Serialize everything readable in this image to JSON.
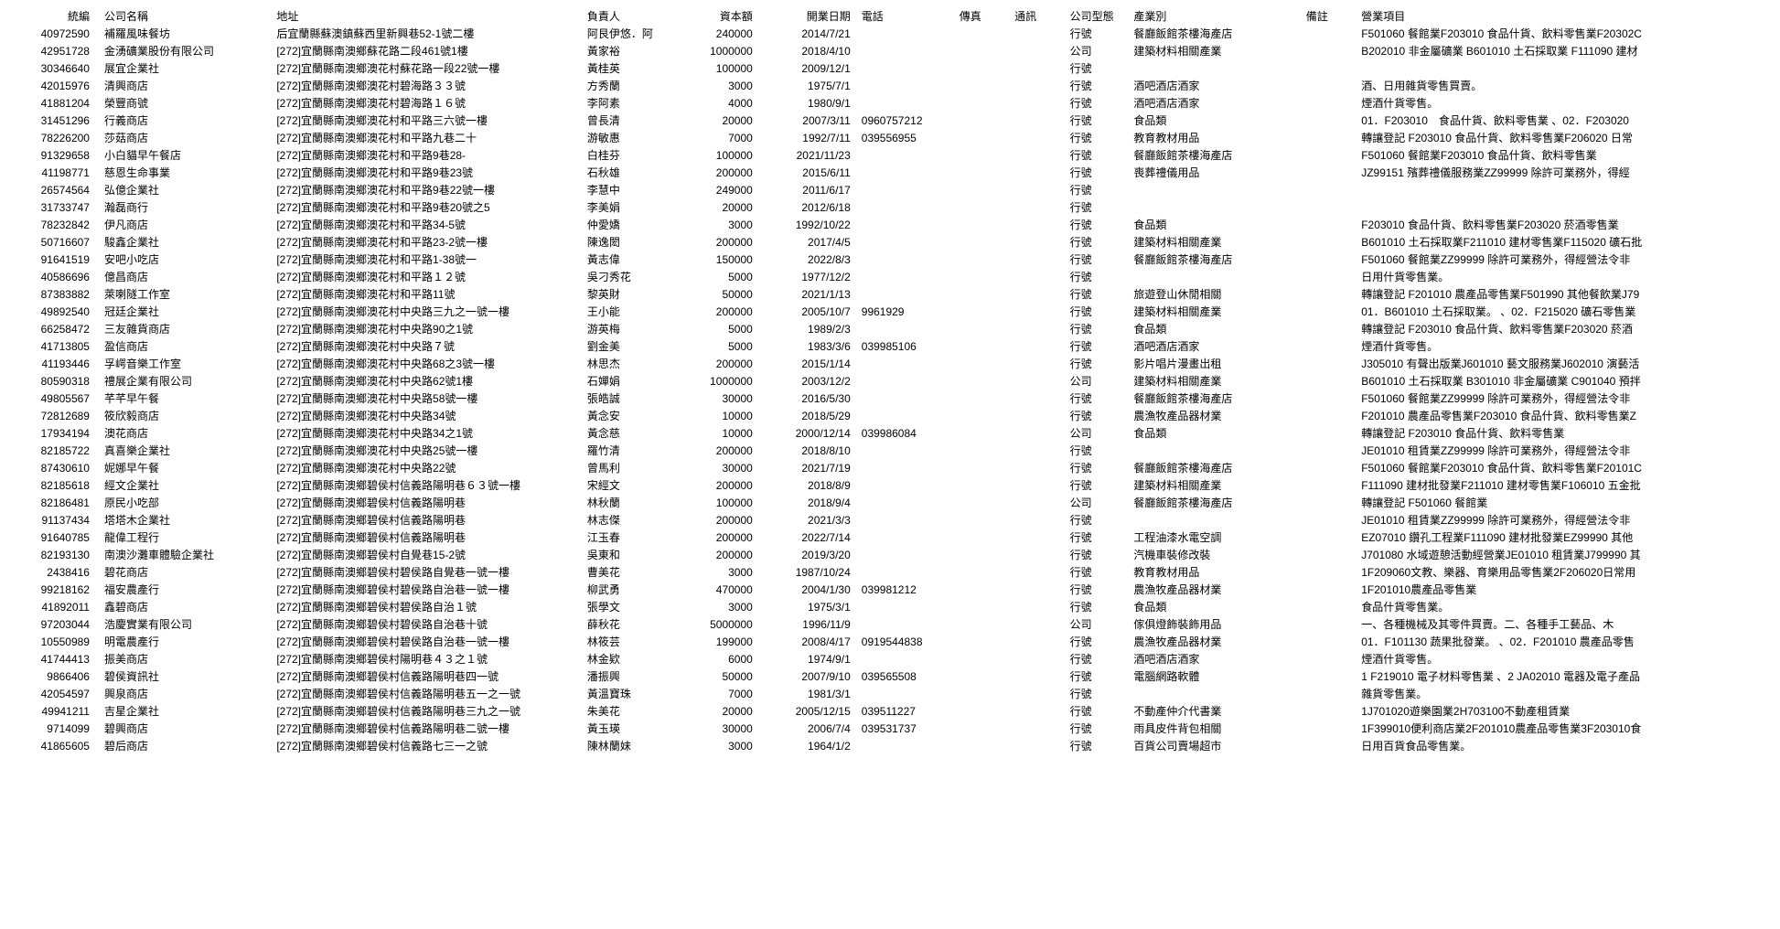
{
  "headers": {
    "id": "統編",
    "name": "公司名稱",
    "addr": "地址",
    "person": "負責人",
    "capital": "資本額",
    "date": "開業日期",
    "phone": "電話",
    "fax": "傳真",
    "comm": "通訊",
    "type": "公司型態",
    "industry": "產業別",
    "note": "備註",
    "biz": "營業項目"
  },
  "rows": [
    {
      "id": "40972590",
      "name": "補羅風味餐坊",
      "addr": "后宜蘭縣蘇澳鎮蘇西里新興巷52-1號二樓",
      "person": "阿艮伊悠．阿",
      "capital": "240000",
      "date": "2014/7/21",
      "phone": "",
      "type": "行號",
      "industry": "餐廳飯館茶樓海產店",
      "biz": "F501060 餐館業F203010 食品什貨、飲料零售業F20302C"
    },
    {
      "id": "42951728",
      "name": "金湧礦業股份有限公司",
      "addr": "[272]宜蘭縣南澳鄉蘇花路二段461號1樓",
      "person": "黃家裕",
      "capital": "1000000",
      "date": "2018/4/10",
      "phone": "",
      "type": "公司",
      "industry": "建築材料相關產業",
      "biz": "B202010 非金屬礦業 B601010 土石採取業 F111090 建材"
    },
    {
      "id": "30346640",
      "name": "展宜企業社",
      "addr": "[272]宜蘭縣南澳鄉澳花村蘇花路一段22號一樓",
      "person": "黃桂英",
      "capital": "100000",
      "date": "2009/12/1",
      "phone": "",
      "type": "行號",
      "industry": "",
      "biz": ""
    },
    {
      "id": "42015976",
      "name": "清興商店",
      "addr": "[272]宜蘭縣南澳鄉澳花村碧海路３３號",
      "person": "方秀蘭",
      "capital": "3000",
      "date": "1975/7/1",
      "phone": "",
      "type": "行號",
      "industry": "酒吧酒店酒家",
      "biz": "酒、日用雜貨零售買賣。"
    },
    {
      "id": "41881204",
      "name": "榮豐商號",
      "addr": "[272]宜蘭縣南澳鄉澳花村碧海路１６號",
      "person": "李阿素",
      "capital": "4000",
      "date": "1980/9/1",
      "phone": "",
      "type": "行號",
      "industry": "酒吧酒店酒家",
      "biz": "煙酒什貨零售。"
    },
    {
      "id": "31451296",
      "name": "行義商店",
      "addr": "[272]宜蘭縣南澳鄉澳花村和平路三六號一樓",
      "person": "曾長清",
      "capital": "20000",
      "date": "2007/3/11",
      "phone": "0960757212",
      "type": "行號",
      "industry": "食品類",
      "biz": "01．F203010　食品什貨、飲料零售業 、02．F203020"
    },
    {
      "id": "78226200",
      "name": "莎菇商店",
      "addr": "[272]宜蘭縣南澳鄉澳花村和平路九巷二十",
      "person": "游敏惠",
      "capital": "7000",
      "date": "1992/7/11",
      "phone": "039556955",
      "type": "行號",
      "industry": "教育教材用品",
      "biz": "轉讓登記 F203010 食品什貨、飲料零售業F206020 日常"
    },
    {
      "id": "91329658",
      "name": "小白貓早午餐店",
      "addr": "[272]宜蘭縣南澳鄉澳花村和平路9巷28-",
      "person": "白桂芬",
      "capital": "100000",
      "date": "2021/11/23",
      "phone": "",
      "type": "行號",
      "industry": "餐廳飯館茶樓海產店",
      "biz": "F501060 餐館業F203010 食品什貨、飲料零售業"
    },
    {
      "id": "41198771",
      "name": "慈恩生命事業",
      "addr": "[272]宜蘭縣南澳鄉澳花村和平路9巷23號",
      "person": "石秋雄",
      "capital": "200000",
      "date": "2015/6/11",
      "phone": "",
      "type": "行號",
      "industry": "喪葬禮儀用品",
      "biz": "JZ99151 殯葬禮儀服務業ZZ99999 除許可業務外，得經"
    },
    {
      "id": "26574564",
      "name": "弘億企業社",
      "addr": "[272]宜蘭縣南澳鄉澳花村和平路9巷22號一樓",
      "person": "李慧中",
      "capital": "249000",
      "date": "2011/6/17",
      "phone": "",
      "type": "行號",
      "industry": "",
      "biz": ""
    },
    {
      "id": "31733747",
      "name": "瀚磊商行",
      "addr": "[272]宜蘭縣南澳鄉澳花村和平路9巷20號之5",
      "person": "李美娟",
      "capital": "20000",
      "date": "2012/6/18",
      "phone": "",
      "type": "行號",
      "industry": "",
      "biz": ""
    },
    {
      "id": "78232842",
      "name": "伊凡商店",
      "addr": "[272]宜蘭縣南澳鄉澳花村和平路34-5號",
      "person": "仲愛嬌",
      "capital": "3000",
      "date": "1992/10/22",
      "phone": "",
      "type": "行號",
      "industry": "食品類",
      "biz": "F203010 食品什貨、飲料零售業F203020 菸酒零售業"
    },
    {
      "id": "50716607",
      "name": "駿鑫企業社",
      "addr": "[272]宜蘭縣南澳鄉澳花村和平路23-2號一樓",
      "person": "陳逸閎",
      "capital": "200000",
      "date": "2017/4/5",
      "phone": "",
      "type": "行號",
      "industry": "建築材料相關產業",
      "biz": "B601010 土石採取業F211010 建材零售業F115020 礦石批"
    },
    {
      "id": "91641519",
      "name": "安吧小吃店",
      "addr": "[272]宜蘭縣南澳鄉澳花村和平路1-38號一",
      "person": "黃志偉",
      "capital": "150000",
      "date": "2022/8/3",
      "phone": "",
      "type": "行號",
      "industry": "餐廳飯館茶樓海產店",
      "biz": "F501060 餐館業ZZ99999 除許可業務外，得經營法令非"
    },
    {
      "id": "40586696",
      "name": "億昌商店",
      "addr": "[272]宜蘭縣南澳鄉澳花村和平路１２號",
      "person": "吳刁秀花",
      "capital": "5000",
      "date": "1977/12/2",
      "phone": "",
      "type": "行號",
      "industry": "",
      "biz": "日用什貨零售業。"
    },
    {
      "id": "87383882",
      "name": "萊喇隧工作室",
      "addr": "[272]宜蘭縣南澳鄉澳花村和平路11號",
      "person": "黎英財",
      "capital": "50000",
      "date": "2021/1/13",
      "phone": "",
      "type": "行號",
      "industry": "旅遊登山休閒相關",
      "biz": "轉讓登記 F201010 農產品零售業F501990 其他餐飲業J79"
    },
    {
      "id": "49892540",
      "name": "冠廷企業社",
      "addr": "[272]宜蘭縣南澳鄉澳花村中央路三九之一號一樓",
      "person": "王小能",
      "capital": "200000",
      "date": "2005/10/7",
      "phone": "9961929",
      "type": "行號",
      "industry": "建築材料相關產業",
      "biz": "01．B601010 土石採取業。 、02．F215020 礦石零售業"
    },
    {
      "id": "66258472",
      "name": "三友雜貨商店",
      "addr": "[272]宜蘭縣南澳鄉澳花村中央路90之1號",
      "person": "游英梅",
      "capital": "5000",
      "date": "1989/2/3",
      "phone": "",
      "type": "行號",
      "industry": "食品類",
      "biz": "轉讓登記 F203010 食品什貨、飲料零售業F203020 菸酒"
    },
    {
      "id": "41713805",
      "name": "盈信商店",
      "addr": "[272]宜蘭縣南澳鄉澳花村中央路７號",
      "person": "劉金美",
      "capital": "5000",
      "date": "1983/3/6",
      "phone": "039985106",
      "type": "行號",
      "industry": "酒吧酒店酒家",
      "biz": "煙酒什貨零售。"
    },
    {
      "id": "41193446",
      "name": "孚崿音樂工作室",
      "addr": "[272]宜蘭縣南澳鄉澳花村中央路68之3號一樓",
      "person": "林思杰",
      "capital": "200000",
      "date": "2015/1/14",
      "phone": "",
      "type": "行號",
      "industry": "影片唱片漫畫出租",
      "biz": "J305010 有聲出版業J601010 藝文服務業J602010 演藝活"
    },
    {
      "id": "80590318",
      "name": "禮展企業有限公司",
      "addr": "[272]宜蘭縣南澳鄉澳花村中央路62號1樓",
      "person": "石嬋娟",
      "capital": "1000000",
      "date": "2003/12/2",
      "phone": "",
      "type": "公司",
      "industry": "建築材料相關產業",
      "biz": "B601010 土石採取業 B301010 非金屬礦業 C901040 預拌"
    },
    {
      "id": "49805567",
      "name": "芊芊早午餐",
      "addr": "[272]宜蘭縣南澳鄉澳花村中央路58號一樓",
      "person": "張皓誠",
      "capital": "30000",
      "date": "2016/5/30",
      "phone": "",
      "type": "行號",
      "industry": "餐廳飯館茶樓海產店",
      "biz": "F501060 餐館業ZZ99999 除許可業務外，得經營法令非"
    },
    {
      "id": "72812689",
      "name": "筱欣毅商店",
      "addr": "[272]宜蘭縣南澳鄉澳花村中央路34號",
      "person": "黃念安",
      "capital": "10000",
      "date": "2018/5/29",
      "phone": "",
      "type": "行號",
      "industry": "農漁牧產品器材業",
      "biz": "F201010 農產品零售業F203010 食品什貨、飲料零售業Z"
    },
    {
      "id": "17934194",
      "name": "澳花商店",
      "addr": "[272]宜蘭縣南澳鄉澳花村中央路34之1號",
      "person": "黃念慈",
      "capital": "10000",
      "date": "2000/12/14",
      "phone": "039986084",
      "type": "公司",
      "industry": "食品類",
      "biz": "轉讓登記 F203010 食品什貨、飲料零售業"
    },
    {
      "id": "82185722",
      "name": "真喜樂企業社",
      "addr": "[272]宜蘭縣南澳鄉澳花村中央路25號一樓",
      "person": "羅竹清",
      "capital": "200000",
      "date": "2018/8/10",
      "phone": "",
      "type": "行號",
      "industry": "",
      "biz": "JE01010 租賃業ZZ99999 除許可業務外，得經營法令非"
    },
    {
      "id": "87430610",
      "name": "妮娜早午餐",
      "addr": "[272]宜蘭縣南澳鄉澳花村中央路22號",
      "person": "曾馬利",
      "capital": "30000",
      "date": "2021/7/19",
      "phone": "",
      "type": "行號",
      "industry": "餐廳飯館茶樓海產店",
      "biz": "F501060 餐館業F203010 食品什貨、飲料零售業F20101C"
    },
    {
      "id": "82185618",
      "name": "經文企業社",
      "addr": "[272]宜蘭縣南澳鄉碧侯村信義路陽明巷６３號一樓",
      "person": "宋經文",
      "capital": "200000",
      "date": "2018/8/9",
      "phone": "",
      "type": "行號",
      "industry": "建築材料相關產業",
      "biz": "F111090 建材批發業F211010 建材零售業F106010 五金批"
    },
    {
      "id": "82186481",
      "name": "原民小吃部",
      "addr": "[272]宜蘭縣南澳鄉碧侯村信義路陽明巷",
      "person": "林秋蘭",
      "capital": "100000",
      "date": "2018/9/4",
      "phone": "",
      "type": "公司",
      "industry": "餐廳飯館茶樓海產店",
      "biz": "轉讓登記 F501060 餐館業"
    },
    {
      "id": "91137434",
      "name": "塔塔木企業社",
      "addr": "[272]宜蘭縣南澳鄉碧侯村信義路陽明巷",
      "person": "林志傑",
      "capital": "200000",
      "date": "2021/3/3",
      "phone": "",
      "type": "行號",
      "industry": "",
      "biz": "JE01010 租賃業ZZ99999 除許可業務外，得經營法令非"
    },
    {
      "id": "91640785",
      "name": "龍偉工程行",
      "addr": "[272]宜蘭縣南澳鄉碧侯村信義路陽明巷",
      "person": "江玉春",
      "capital": "200000",
      "date": "2022/7/14",
      "phone": "",
      "type": "行號",
      "industry": "工程油漆水電空調",
      "biz": "EZ07010 鑽孔工程業F111090 建材批發業EZ99990 其他"
    },
    {
      "id": "82193130",
      "name": "南澳沙灘車體驗企業社",
      "addr": "[272]宜蘭縣南澳鄉碧侯村自覺巷15-2號",
      "person": "吳東和",
      "capital": "200000",
      "date": "2019/3/20",
      "phone": "",
      "type": "行號",
      "industry": "汽機車裝修改裝",
      "biz": "J701080 水域遊憩活動經營業JE01010 租賃業J799990 其"
    },
    {
      "id": "2438416",
      "name": "碧花商店",
      "addr": "[272]宜蘭縣南澳鄉碧侯村碧侯路自覺巷一號一樓",
      "person": "曹美花",
      "capital": "3000",
      "date": "1987/10/24",
      "phone": "",
      "type": "行號",
      "industry": "教育教材用品",
      "biz": "1F209060文教、樂器、育樂用品零售業2F206020日常用"
    },
    {
      "id": "99218162",
      "name": "福安農產行",
      "addr": "[272]宜蘭縣南澳鄉碧侯村碧侯路自治巷一號一樓",
      "person": "柳武勇",
      "capital": "470000",
      "date": "2004/1/30",
      "phone": "039981212",
      "type": "行號",
      "industry": "農漁牧產品器材業",
      "biz": "1F201010農產品零售業"
    },
    {
      "id": "41892011",
      "name": "鑫碧商店",
      "addr": "[272]宜蘭縣南澳鄉碧侯村碧侯路自治１號",
      "person": "張學文",
      "capital": "3000",
      "date": "1975/3/1",
      "phone": "",
      "type": "行號",
      "industry": "食品類",
      "biz": "食品什貨零售業。"
    },
    {
      "id": "97203044",
      "name": "浩慶實業有限公司",
      "addr": "[272]宜蘭縣南澳鄉碧侯村碧侯路自治巷十號",
      "person": "薛秋花",
      "capital": "5000000",
      "date": "1996/11/9",
      "phone": "",
      "type": "公司",
      "industry": "傢俱燈飾裝飾用品",
      "biz": "一、各種機械及其零件買賣。二、各種手工藝品、木"
    },
    {
      "id": "10550989",
      "name": "明電農產行",
      "addr": "[272]宜蘭縣南澳鄉碧侯村碧侯路自治巷一號一樓",
      "person": "林筱芸",
      "capital": "199000",
      "date": "2008/4/17",
      "phone": "0919544838",
      "type": "行號",
      "industry": "農漁牧產品器材業",
      "biz": "01．F101130 蔬果批發業。 、02．F201010 農產品零售"
    },
    {
      "id": "41744413",
      "name": "振美商店",
      "addr": "[272]宜蘭縣南澳鄉碧侯村陽明巷４３之１號",
      "person": "林金欵",
      "capital": "6000",
      "date": "1974/9/1",
      "phone": "",
      "type": "行號",
      "industry": "酒吧酒店酒家",
      "biz": "煙酒什貨零售。"
    },
    {
      "id": "9866406",
      "name": "碧侯資訊社",
      "addr": "[272]宜蘭縣南澳鄉碧侯村信義路陽明巷四一號",
      "person": "潘振興",
      "capital": "50000",
      "date": "2007/9/10",
      "phone": "039565508",
      "type": "行號",
      "industry": "電腦網路軟體",
      "biz": "1 F219010 電子材料零售業 、2 JA02010 電器及電子產品"
    },
    {
      "id": "42054597",
      "name": "興泉商店",
      "addr": "[272]宜蘭縣南澳鄉碧侯村信義路陽明巷五一之一號",
      "person": "黃溫寶珠",
      "capital": "7000",
      "date": "1981/3/1",
      "phone": "",
      "type": "行號",
      "industry": "",
      "biz": "雜貨零售業。"
    },
    {
      "id": "49941211",
      "name": "吉星企業社",
      "addr": "[272]宜蘭縣南澳鄉碧侯村信義路陽明巷三九之一號",
      "person": "朱美花",
      "capital": "20000",
      "date": "2005/12/15",
      "phone": "039511227",
      "type": "行號",
      "industry": "不動產仲介代書業",
      "biz": "1J701020遊樂園業2H703100不動產租賃業"
    },
    {
      "id": "9714099",
      "name": "碧興商店",
      "addr": "[272]宜蘭縣南澳鄉碧侯村信義路陽明巷二號一樓",
      "person": "黃玉瑛",
      "capital": "30000",
      "date": "2006/7/4",
      "phone": "039531737",
      "type": "行號",
      "industry": "雨具皮件背包相關",
      "biz": "1F399010便利商店業2F201010農產品零售業3F203010食"
    },
    {
      "id": "41865605",
      "name": "碧后商店",
      "addr": "[272]宜蘭縣南澳鄉碧侯村信義路七三一之號",
      "person": "陳林蘭妹",
      "capital": "3000",
      "date": "1964/1/2",
      "phone": "",
      "type": "行號",
      "industry": "百貨公司賣場超市",
      "biz": "日用百貨食品零售業。"
    }
  ]
}
